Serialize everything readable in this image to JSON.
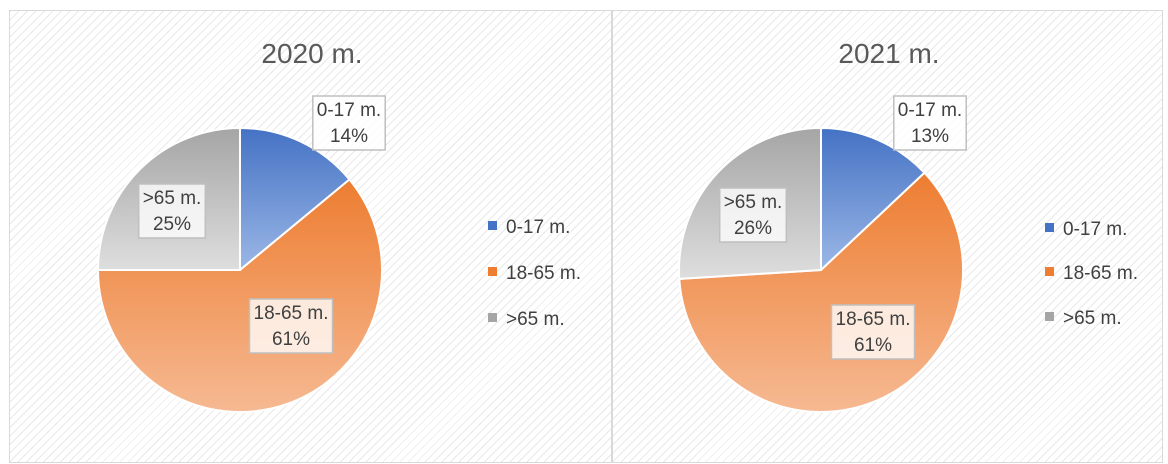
{
  "chart_data": [
    {
      "type": "pie",
      "title": "2020 m.",
      "categories": [
        "0-17 m.",
        "18-65 m.",
        ">65 m."
      ],
      "values": [
        14,
        61,
        25
      ],
      "data_labels": [
        "14%",
        "61%",
        "25%"
      ],
      "legend": [
        "0-17 m.",
        "18-65 m.",
        ">65 m."
      ],
      "legend_position": "right",
      "colors": [
        "#4472c4",
        "#ed7d31",
        "#a5a5a5"
      ]
    },
    {
      "type": "pie",
      "title": "2021 m.",
      "categories": [
        "0-17 m.",
        "18-65 m.",
        ">65 m."
      ],
      "values": [
        13,
        61,
        26
      ],
      "data_labels": [
        "13%",
        "61%",
        "26%"
      ],
      "legend": [
        "0-17 m.",
        "18-65 m.",
        ">65 m."
      ],
      "legend_position": "right",
      "colors": [
        "#4472c4",
        "#ed7d31",
        "#a5a5a5"
      ]
    }
  ]
}
